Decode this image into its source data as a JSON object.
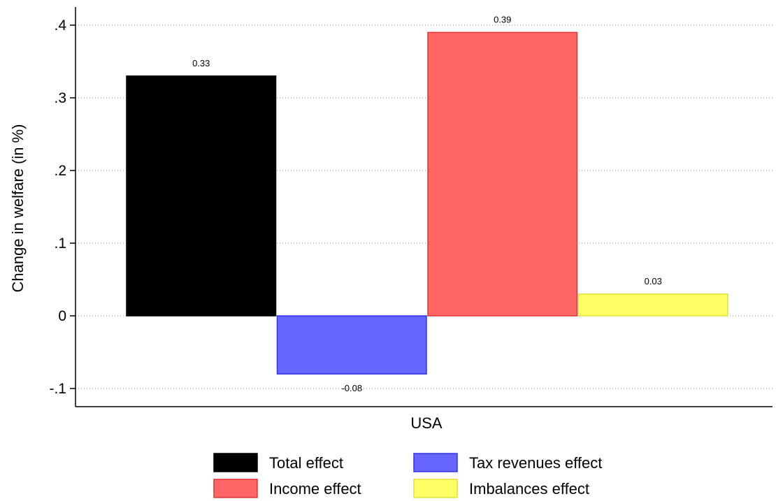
{
  "chart_data": {
    "type": "bar",
    "categories": [
      "USA"
    ],
    "series": [
      {
        "name": "Total effect",
        "values": [
          0.33
        ],
        "label": "0.33",
        "color": "#000000",
        "stroke": "#000000"
      },
      {
        "name": "Tax revenues effect",
        "values": [
          -0.08
        ],
        "label": "-0.08",
        "color": "#6666ff",
        "stroke": "#3333dd"
      },
      {
        "name": "Income effect",
        "values": [
          0.39
        ],
        "label": "0.39",
        "color": "#ff6666",
        "stroke": "#dd3333"
      },
      {
        "name": "Imbalances effect",
        "values": [
          0.03
        ],
        "label": "0.03",
        "color": "#ffff66",
        "stroke": "#e0e040"
      }
    ],
    "bar_order": [
      "Total effect",
      "Tax revenues effect",
      "Income effect",
      "Imbalances effect"
    ],
    "ylabel": "Change in welfare (in %)",
    "xlabel": "USA",
    "ylim": [
      -0.12,
      0.42
    ],
    "yticks": [
      -0.1,
      0,
      0.1,
      0.2,
      0.3,
      0.4
    ],
    "ytick_labels": [
      "-.1",
      "0",
      ".1",
      ".2",
      ".3",
      ".4"
    ],
    "grid": true,
    "legend": {
      "placement": "bottom",
      "columns": 2,
      "order": [
        "Total effect",
        "Tax revenues effect",
        "Income effect",
        "Imbalances effect"
      ]
    }
  }
}
